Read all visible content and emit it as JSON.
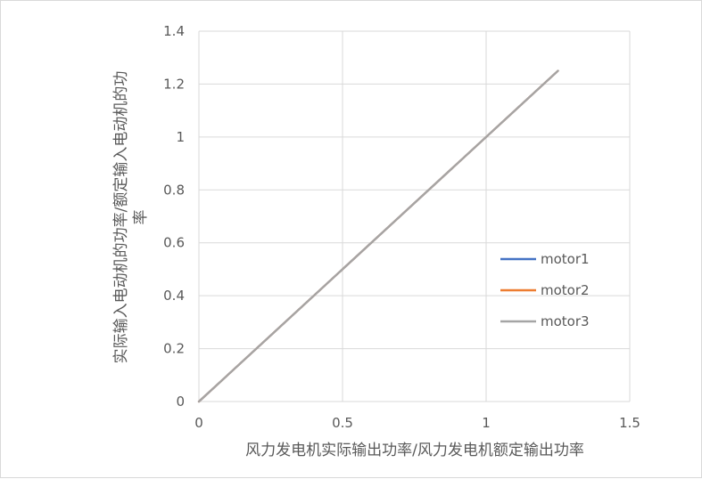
{
  "chart_data": {
    "type": "line",
    "title": "",
    "xlabel": "风力发电机实际输出功率/风力发电机额定输出功率",
    "ylabel_lines": [
      "实际输入电动机的功率/额定输入电动机的功",
      "率"
    ],
    "xlim": [
      0,
      1.5
    ],
    "ylim": [
      0,
      1.4
    ],
    "x_ticks": [
      0,
      0.5,
      1,
      1.5
    ],
    "x_tick_labels": [
      "0",
      "0.5",
      "1",
      "1.5"
    ],
    "y_ticks": [
      0,
      0.2,
      0.4,
      0.6,
      0.8,
      1,
      1.2,
      1.4
    ],
    "y_tick_labels": [
      "0",
      "0.2",
      "0.4",
      "0.6",
      "0.8",
      "1",
      "1.2",
      "1.4"
    ],
    "grid": true,
    "legend_position": "right",
    "series": [
      {
        "name": "motor1",
        "color": "#4472c4",
        "x": [
          0,
          1.25
        ],
        "y": [
          0,
          1.25
        ]
      },
      {
        "name": "motor2",
        "color": "#ed7d31",
        "x": [
          0,
          1.25
        ],
        "y": [
          0,
          1.25
        ]
      },
      {
        "name": "motor3",
        "color": "#a5a5a5",
        "x": [
          0,
          1.25
        ],
        "y": [
          0,
          1.25
        ]
      }
    ]
  }
}
